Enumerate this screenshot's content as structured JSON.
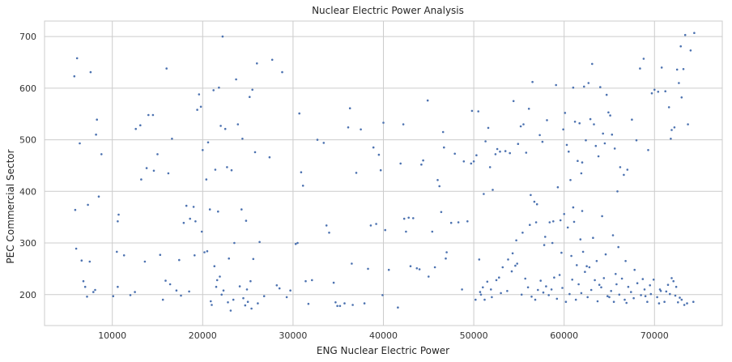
{
  "chart_data": {
    "type": "scatter",
    "title": "Nuclear Electric Power Analysis",
    "xlabel": "ENG Nuclear Electric Power",
    "ylabel": "PEC Commercial Sector",
    "xlim": [
      2500,
      77500
    ],
    "ylim": [
      140,
      730
    ],
    "xticks": [
      10000,
      20000,
      30000,
      40000,
      50000,
      60000,
      70000
    ],
    "yticks": [
      200,
      300,
      400,
      500,
      600,
      700
    ],
    "grid": true,
    "marker_color": "#4c72b0",
    "points": [
      [
        5800,
        623
      ],
      [
        6100,
        658
      ],
      [
        6400,
        493
      ],
      [
        7600,
        631
      ],
      [
        6000,
        289
      ],
      [
        5900,
        364
      ],
      [
        6600,
        266
      ],
      [
        6800,
        226
      ],
      [
        7000,
        215
      ],
      [
        7200,
        196
      ],
      [
        7500,
        264
      ],
      [
        7900,
        205
      ],
      [
        8100,
        209
      ],
      [
        8300,
        539
      ],
      [
        8500,
        390
      ],
      [
        8200,
        510
      ],
      [
        8800,
        472
      ],
      [
        7300,
        374
      ],
      [
        10100,
        197
      ],
      [
        10600,
        215
      ],
      [
        10500,
        283
      ],
      [
        10700,
        355
      ],
      [
        10600,
        342
      ],
      [
        11300,
        276
      ],
      [
        12000,
        199
      ],
      [
        12500,
        205
      ],
      [
        12600,
        521
      ],
      [
        13100,
        528
      ],
      [
        13200,
        423
      ],
      [
        13600,
        264
      ],
      [
        13800,
        445
      ],
      [
        14000,
        548
      ],
      [
        14500,
        548
      ],
      [
        14600,
        440
      ],
      [
        15000,
        472
      ],
      [
        15300,
        277
      ],
      [
        15600,
        190
      ],
      [
        15900,
        227
      ],
      [
        16000,
        638
      ],
      [
        16200,
        435
      ],
      [
        16400,
        220
      ],
      [
        16600,
        502
      ],
      [
        17100,
        208
      ],
      [
        17400,
        267
      ],
      [
        17600,
        198
      ],
      [
        17900,
        339
      ],
      [
        18200,
        372
      ],
      [
        18500,
        206
      ],
      [
        18600,
        347
      ],
      [
        19000,
        370
      ],
      [
        19200,
        342
      ],
      [
        19400,
        558
      ],
      [
        19600,
        588
      ],
      [
        19800,
        564
      ],
      [
        19100,
        276
      ],
      [
        19900,
        322
      ],
      [
        20000,
        480
      ],
      [
        20200,
        282
      ],
      [
        20400,
        423
      ],
      [
        20500,
        284
      ],
      [
        20600,
        495
      ],
      [
        20800,
        365
      ],
      [
        21000,
        180
      ],
      [
        21200,
        596
      ],
      [
        21300,
        255
      ],
      [
        21400,
        442
      ],
      [
        21500,
        215
      ],
      [
        21700,
        361
      ],
      [
        21800,
        601
      ],
      [
        22000,
        527
      ],
      [
        22200,
        700
      ],
      [
        22300,
        208
      ],
      [
        22500,
        521
      ],
      [
        22700,
        447
      ],
      [
        22900,
        270
      ],
      [
        23200,
        441
      ],
      [
        23400,
        190
      ],
      [
        23500,
        300
      ],
      [
        23700,
        617
      ],
      [
        23900,
        530
      ],
      [
        24100,
        216
      ],
      [
        24300,
        365
      ],
      [
        24400,
        502
      ],
      [
        24700,
        179
      ],
      [
        24800,
        343
      ],
      [
        25000,
        186
      ],
      [
        25200,
        583
      ],
      [
        25300,
        226
      ],
      [
        25500,
        597
      ],
      [
        25600,
        269
      ],
      [
        25800,
        476
      ],
      [
        26000,
        648
      ],
      [
        26100,
        183
      ],
      [
        26300,
        302
      ],
      [
        26800,
        197
      ],
      [
        27400,
        466
      ],
      [
        27700,
        655
      ],
      [
        28200,
        218
      ],
      [
        28500,
        212
      ],
      [
        28800,
        631
      ],
      [
        29300,
        195
      ],
      [
        29700,
        208
      ],
      [
        22800,
        185
      ],
      [
        23100,
        169
      ],
      [
        24500,
        193
      ],
      [
        24900,
        210
      ],
      [
        25400,
        173
      ],
      [
        21600,
        228
      ],
      [
        20900,
        187
      ],
      [
        22100,
        200
      ],
      [
        21900,
        235
      ],
      [
        30300,
        298
      ],
      [
        30500,
        300
      ],
      [
        30700,
        551
      ],
      [
        30900,
        437
      ],
      [
        31100,
        411
      ],
      [
        31400,
        226
      ],
      [
        31700,
        182
      ],
      [
        32100,
        228
      ],
      [
        32700,
        500
      ],
      [
        33400,
        494
      ],
      [
        33700,
        334
      ],
      [
        34000,
        320
      ],
      [
        34500,
        223
      ],
      [
        34700,
        185
      ],
      [
        34900,
        178
      ],
      [
        35200,
        178
      ],
      [
        35700,
        183
      ],
      [
        36300,
        561
      ],
      [
        36100,
        524
      ],
      [
        36500,
        260
      ],
      [
        36600,
        180
      ],
      [
        37000,
        436
      ],
      [
        37500,
        520
      ],
      [
        37900,
        183
      ],
      [
        38300,
        250
      ],
      [
        38600,
        334
      ],
      [
        38900,
        485
      ],
      [
        39200,
        337
      ],
      [
        39500,
        471
      ],
      [
        39700,
        441
      ],
      [
        39900,
        199
      ],
      [
        40000,
        533
      ],
      [
        40200,
        325
      ],
      [
        40600,
        248
      ],
      [
        41600,
        175
      ],
      [
        41900,
        454
      ],
      [
        42200,
        530
      ],
      [
        42300,
        347
      ],
      [
        42500,
        322
      ],
      [
        42800,
        349
      ],
      [
        43000,
        255
      ],
      [
        43300,
        348
      ],
      [
        43700,
        251
      ],
      [
        44000,
        249
      ],
      [
        44200,
        452
      ],
      [
        44400,
        460
      ],
      [
        44900,
        576
      ],
      [
        45000,
        235
      ],
      [
        45400,
        322
      ],
      [
        45700,
        253
      ],
      [
        46000,
        422
      ],
      [
        46200,
        410
      ],
      [
        46400,
        360
      ],
      [
        46600,
        515
      ],
      [
        46700,
        485
      ],
      [
        46900,
        270
      ],
      [
        47000,
        282
      ],
      [
        47500,
        339
      ],
      [
        47900,
        473
      ],
      [
        48300,
        340
      ],
      [
        48700,
        210
      ],
      [
        48900,
        458
      ],
      [
        49300,
        342
      ],
      [
        49700,
        454
      ],
      [
        49800,
        556
      ],
      [
        50000,
        458
      ],
      [
        50300,
        470
      ],
      [
        50500,
        555
      ],
      [
        50800,
        200
      ],
      [
        51100,
        395
      ],
      [
        51300,
        497
      ],
      [
        51600,
        523
      ],
      [
        51800,
        447
      ],
      [
        52100,
        403
      ],
      [
        52400,
        472
      ],
      [
        52600,
        482
      ],
      [
        52900,
        477
      ],
      [
        53200,
        253
      ],
      [
        53500,
        478
      ],
      [
        54000,
        474
      ],
      [
        54400,
        575
      ],
      [
        54600,
        256
      ],
      [
        54900,
        492
      ],
      [
        55200,
        526
      ],
      [
        55500,
        530
      ],
      [
        55800,
        475
      ],
      [
        56100,
        560
      ],
      [
        56300,
        393
      ],
      [
        56500,
        612
      ],
      [
        56700,
        380
      ],
      [
        57000,
        375
      ],
      [
        57300,
        509
      ],
      [
        57600,
        496
      ],
      [
        57800,
        296
      ],
      [
        58100,
        538
      ],
      [
        58400,
        340
      ],
      [
        58800,
        342
      ],
      [
        59100,
        606
      ],
      [
        59300,
        408
      ],
      [
        59600,
        344
      ],
      [
        59900,
        520
      ],
      [
        60100,
        552
      ],
      [
        60300,
        490
      ],
      [
        60500,
        477
      ],
      [
        60700,
        422
      ],
      [
        61000,
        601
      ],
      [
        61200,
        535
      ],
      [
        61500,
        459
      ],
      [
        61700,
        532
      ],
      [
        62000,
        456
      ],
      [
        62200,
        603
      ],
      [
        62400,
        499
      ],
      [
        62700,
        610
      ],
      [
        62900,
        540
      ],
      [
        63100,
        647
      ],
      [
        63300,
        530
      ],
      [
        63500,
        488
      ],
      [
        63800,
        468
      ],
      [
        64000,
        602
      ],
      [
        64300,
        512
      ],
      [
        64500,
        493
      ],
      [
        64700,
        587
      ],
      [
        64900,
        553
      ],
      [
        65100,
        547
      ],
      [
        65300,
        510
      ],
      [
        65600,
        483
      ],
      [
        65900,
        400
      ],
      [
        66200,
        447
      ],
      [
        66600,
        432
      ],
      [
        67000,
        442
      ],
      [
        67500,
        539
      ],
      [
        68000,
        499
      ],
      [
        68400,
        638
      ],
      [
        68800,
        657
      ],
      [
        69300,
        480
      ],
      [
        69700,
        590
      ],
      [
        70000,
        597
      ],
      [
        70400,
        593
      ],
      [
        70800,
        640
      ],
      [
        71200,
        594
      ],
      [
        71600,
        563
      ],
      [
        71900,
        519
      ],
      [
        72200,
        524
      ],
      [
        72500,
        636
      ],
      [
        72900,
        681
      ],
      [
        73200,
        637
      ],
      [
        73400,
        703
      ],
      [
        73700,
        530
      ],
      [
        74000,
        673
      ],
      [
        74400,
        707
      ],
      [
        73000,
        582
      ],
      [
        72700,
        610
      ],
      [
        71800,
        502
      ],
      [
        50200,
        190
      ],
      [
        50600,
        268
      ],
      [
        51000,
        214
      ],
      [
        51500,
        225
      ],
      [
        52000,
        195
      ],
      [
        52500,
        228
      ],
      [
        53000,
        203
      ],
      [
        53700,
        207
      ],
      [
        54200,
        245
      ],
      [
        54800,
        260
      ],
      [
        55300,
        200
      ],
      [
        55700,
        231
      ],
      [
        56000,
        214
      ],
      [
        56400,
        196
      ],
      [
        56800,
        190
      ],
      [
        57100,
        209
      ],
      [
        57400,
        227
      ],
      [
        57700,
        204
      ],
      [
        58000,
        216
      ],
      [
        58300,
        199
      ],
      [
        58600,
        210
      ],
      [
        58900,
        233
      ],
      [
        59200,
        192
      ],
      [
        59500,
        238
      ],
      [
        59800,
        213
      ],
      [
        60200,
        186
      ],
      [
        60600,
        201
      ],
      [
        60900,
        229
      ],
      [
        61300,
        190
      ],
      [
        61600,
        220
      ],
      [
        61900,
        203
      ],
      [
        62300,
        244
      ],
      [
        62600,
        195
      ],
      [
        63000,
        209
      ],
      [
        63400,
        228
      ],
      [
        63700,
        187
      ],
      [
        64100,
        214
      ],
      [
        64400,
        232
      ],
      [
        64800,
        197
      ],
      [
        65200,
        207
      ],
      [
        65500,
        186
      ],
      [
        65800,
        220
      ],
      [
        66100,
        200
      ],
      [
        66400,
        231
      ],
      [
        66700,
        190
      ],
      [
        67100,
        215
      ],
      [
        67400,
        205
      ],
      [
        67700,
        193
      ],
      [
        68100,
        222
      ],
      [
        68500,
        199
      ],
      [
        68900,
        210
      ],
      [
        69200,
        186
      ],
      [
        69600,
        201
      ],
      [
        69900,
        229
      ],
      [
        70300,
        195
      ],
      [
        70700,
        207
      ],
      [
        71100,
        186
      ],
      [
        71500,
        219
      ],
      [
        71900,
        232
      ],
      [
        72300,
        198
      ],
      [
        72600,
        185
      ],
      [
        73000,
        190
      ],
      [
        73300,
        180
      ],
      [
        74300,
        186
      ],
      [
        72100,
        226
      ],
      [
        72400,
        215
      ],
      [
        70500,
        183
      ],
      [
        69000,
        197
      ],
      [
        66900,
        184
      ],
      [
        65000,
        195
      ],
      [
        63900,
        219
      ],
      [
        62800,
        253
      ],
      [
        61400,
        257
      ],
      [
        60800,
        275
      ],
      [
        59700,
        281
      ],
      [
        58700,
        300
      ],
      [
        57900,
        312
      ],
      [
        56900,
        340
      ],
      [
        56200,
        335
      ],
      [
        55400,
        320
      ],
      [
        54700,
        305
      ],
      [
        54300,
        280
      ],
      [
        53800,
        268
      ],
      [
        52800,
        233
      ],
      [
        51900,
        210
      ],
      [
        51200,
        190
      ],
      [
        50700,
        205
      ],
      [
        60400,
        330
      ],
      [
        61100,
        341
      ],
      [
        61800,
        307
      ],
      [
        62100,
        283
      ],
      [
        62500,
        255
      ],
      [
        63600,
        265
      ],
      [
        64600,
        278
      ],
      [
        65700,
        240
      ],
      [
        66800,
        265
      ],
      [
        67800,
        248
      ],
      [
        68700,
        230
      ],
      [
        69500,
        218
      ],
      [
        70600,
        210
      ],
      [
        71300,
        206
      ],
      [
        71700,
        201
      ],
      [
        72800,
        194
      ],
      [
        73600,
        183
      ],
      [
        66000,
        292
      ],
      [
        65400,
        315
      ],
      [
        64200,
        352
      ],
      [
        63200,
        310
      ],
      [
        62000,
        362
      ],
      [
        61900,
        435
      ],
      [
        61000,
        369
      ],
      [
        60000,
        356
      ]
    ]
  }
}
